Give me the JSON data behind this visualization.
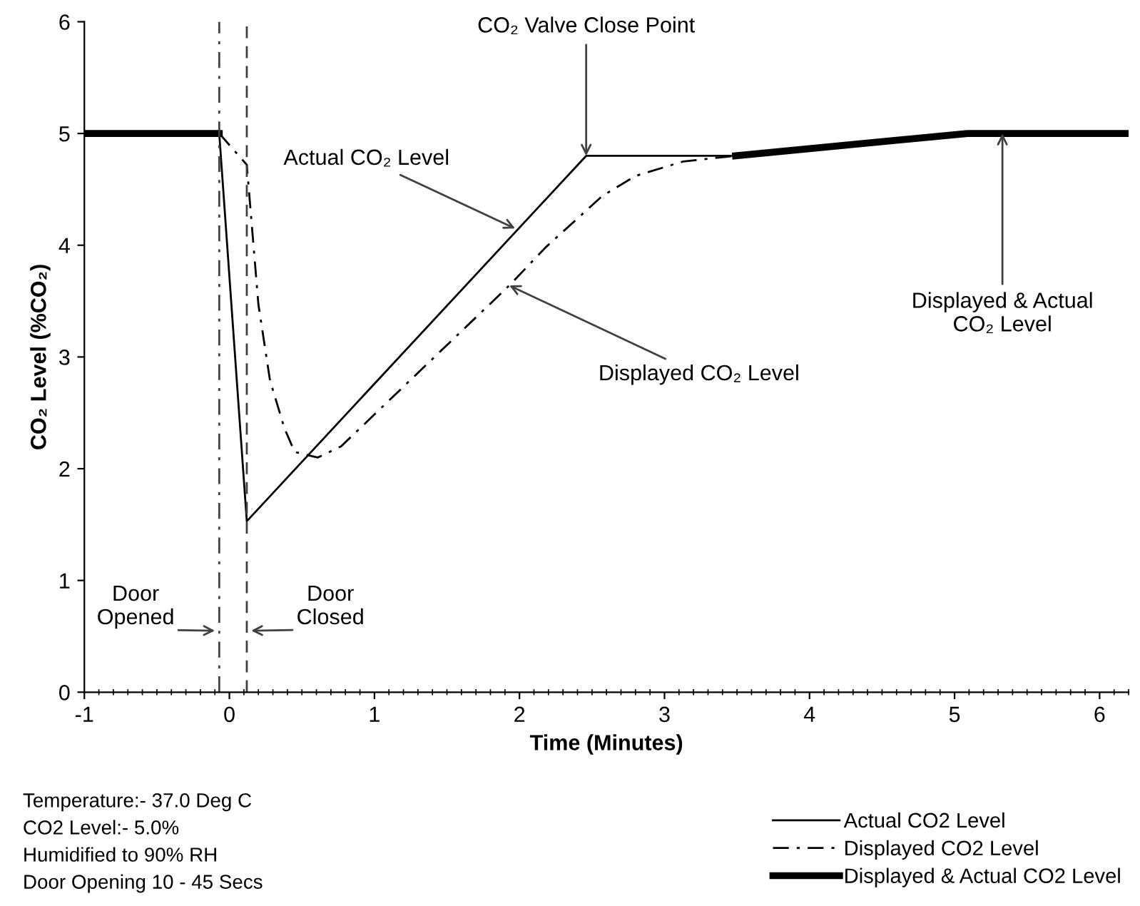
{
  "chart_data": {
    "type": "line",
    "xlabel": "Time (Minutes)",
    "ylabel": "CO₂ Level (%CO₂)",
    "xlim": [
      -1,
      6.2
    ],
    "ylim": [
      0,
      6
    ],
    "xticks": [
      -1,
      0,
      1,
      2,
      3,
      4,
      5,
      6
    ],
    "yticks": [
      0,
      1,
      2,
      3,
      4,
      5,
      6
    ],
    "grid": false,
    "legend": "bottom right",
    "marker": "none",
    "series": [
      {
        "name": "Actual CO2 Level",
        "color": "#000000",
        "line_style": "solid",
        "x": [
          -0.07,
          0.12,
          2.46,
          3.49
        ],
        "values": [
          5,
          1.53,
          4.8,
          4.8
        ]
      },
      {
        "name": "Displayed CO2 Level",
        "color": "#000000",
        "line_style": "dashdot",
        "x": [
          -0.07,
          0.12,
          0.2,
          0.28,
          0.38,
          0.45,
          0.61,
          0.77,
          1.93,
          2.18,
          2.57,
          2.8,
          3.13,
          3.49
        ],
        "values": [
          5,
          4.72,
          3.47,
          2.79,
          2.36,
          2.15,
          2.1,
          2.2,
          3.64,
          3.98,
          4.44,
          4.62,
          4.75,
          4.8
        ]
      },
      {
        "name": "Displayed & Actual CO2 Level",
        "color": "#000000",
        "line_style": "solid",
        "x": [
          -1,
          -0.07,
          1,
          3.49,
          5.09,
          6.2
        ],
        "values": [
          5,
          5,
          null,
          4.8,
          5.0,
          5.0
        ]
      }
    ],
    "ref_lines": [
      {
        "axis": "x",
        "value": -0.07,
        "label": null,
        "color": "#404040",
        "line_style": "dashdot"
      },
      {
        "axis": "x",
        "value": 0.12,
        "label": null,
        "color": "#404040",
        "line_style": "dashed"
      }
    ],
    "annotations": [
      {
        "text": "CO₂ Valve Close Point",
        "x": 2.46,
        "y": 4.8
      },
      {
        "text": "Actual CO₂ Level",
        "x": 1.97,
        "y": 4.15
      },
      {
        "text": "Displayed CO₂ Level",
        "x": 1.93,
        "y": 3.64
      },
      {
        "text": "Displayed & Actual\nCO₂ Level",
        "x": 5.33,
        "y": 5.0
      },
      {
        "text": "Door\nOpened",
        "x": -0.1,
        "y": 0.55
      },
      {
        "text": "Door\nClosed",
        "x": 0.15,
        "y": 0.55
      },
      "Temperature:- 37.0 Deg C",
      "CO2 Level:- 5.0%",
      "Humidified to 90% RH",
      "Door Opening 10 - 45 Secs"
    ]
  }
}
